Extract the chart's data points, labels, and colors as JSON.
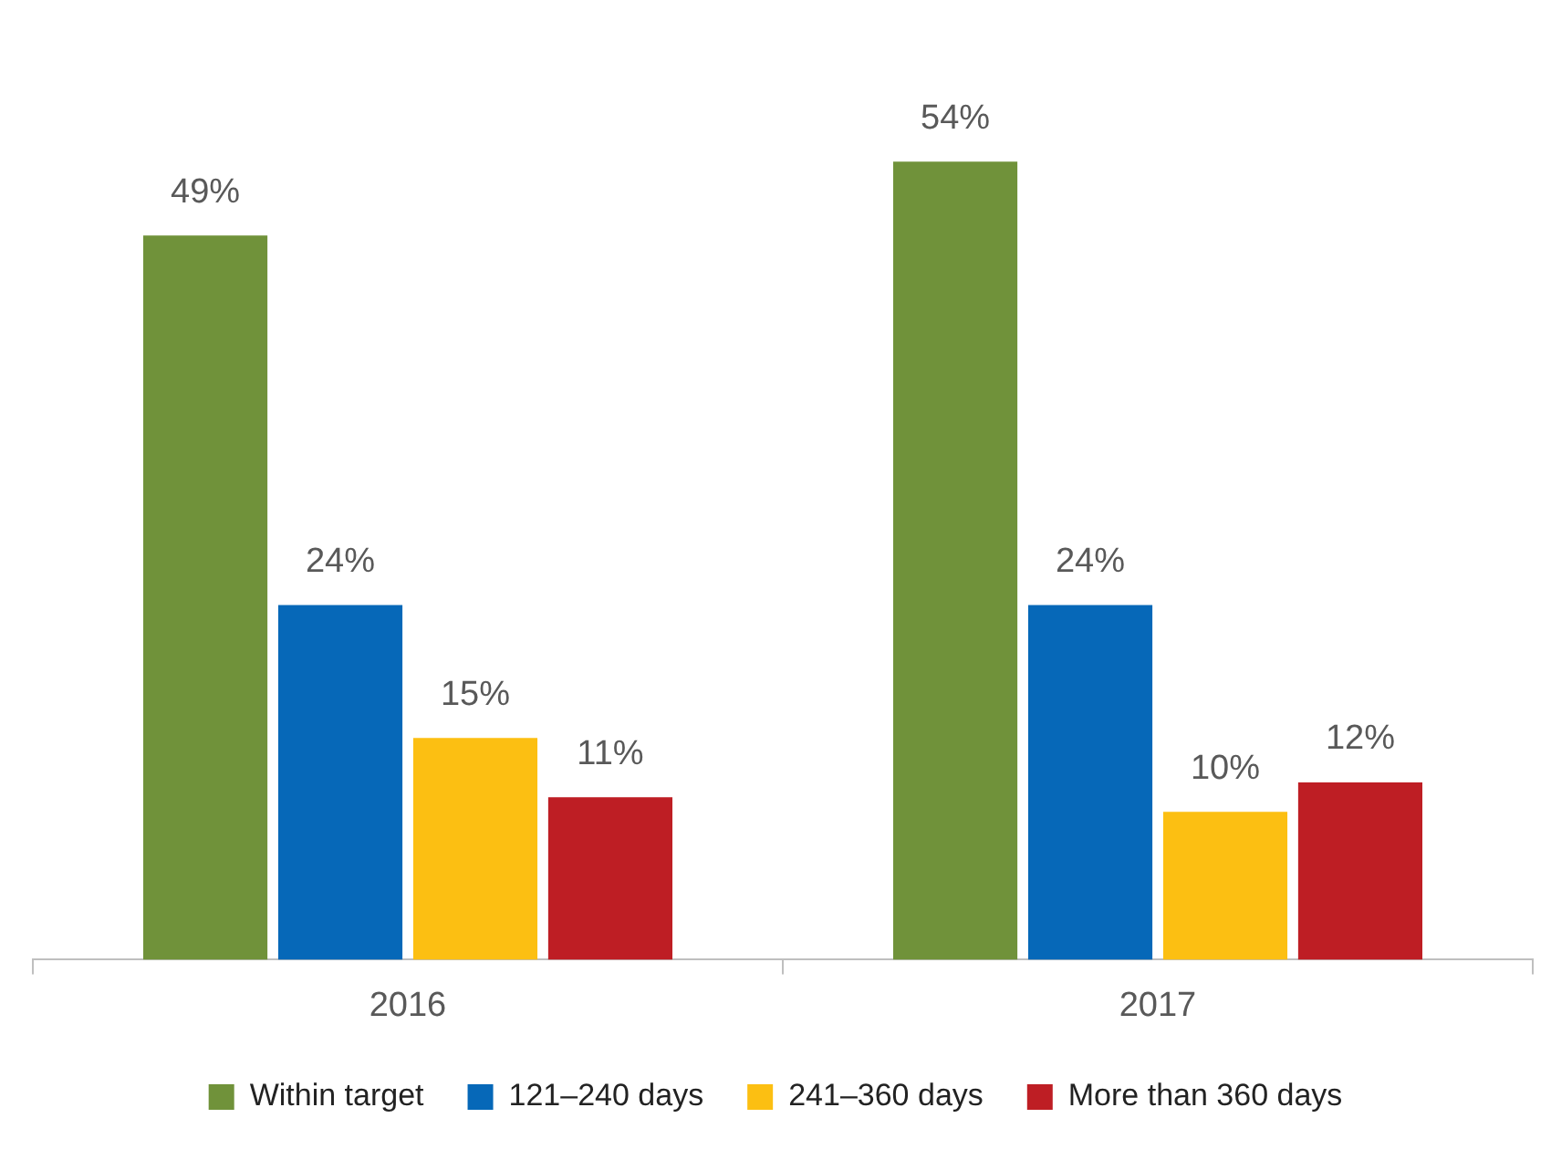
{
  "chart_data": {
    "type": "bar",
    "categories": [
      "2016",
      "2017"
    ],
    "legend": "bottom",
    "grid": false,
    "series": [
      {
        "name": "Within target",
        "color": "#70923a",
        "values": [
          49,
          54
        ],
        "value_labels": [
          "49%",
          "54%"
        ]
      },
      {
        "name": "121–240 days",
        "color": "#0668b8",
        "values": [
          24,
          24
        ],
        "value_labels": [
          "24%",
          "24%"
        ]
      },
      {
        "name": "241–360 days",
        "color": "#fcbf12",
        "values": [
          15,
          10
        ],
        "value_labels": [
          "15%",
          "10%"
        ]
      },
      {
        "name": "More than 360 days",
        "color": "#be1e24",
        "values": [
          11,
          12
        ],
        "value_labels": [
          "11%",
          "12%"
        ]
      }
    ]
  }
}
